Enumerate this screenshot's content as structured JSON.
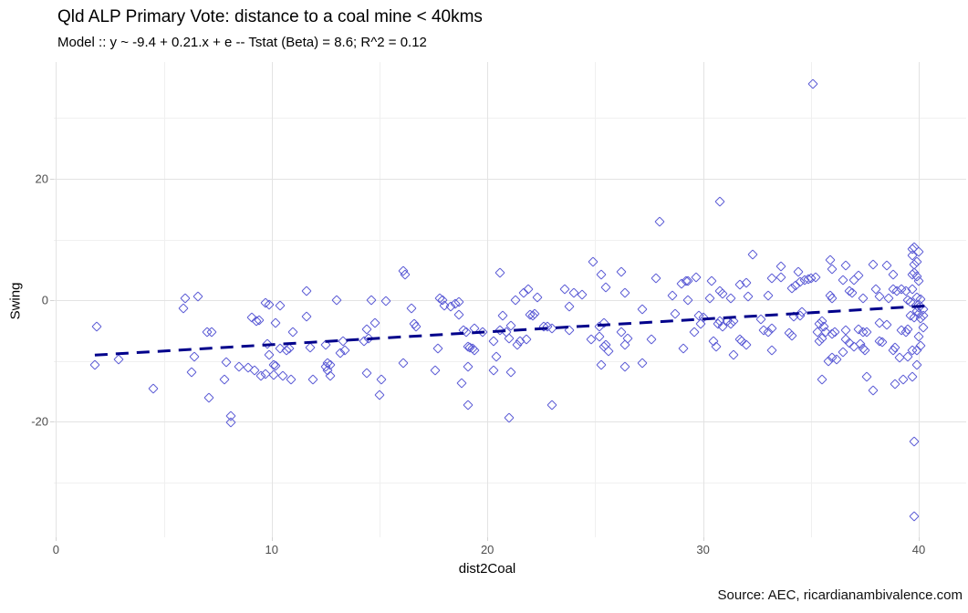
{
  "title": "Qld ALP Primary Vote: distance to a coal mine < 40kms",
  "subtitle": "Model :: y ~ -9.4 + 0.21.x + e -- Tstat (Beta) = 8.6; R^2 = 0.12",
  "source": "Source: AEC, ricardianambivalence.com",
  "chart_data": {
    "type": "scatter",
    "title": "Qld ALP Primary Vote: distance to a coal mine < 40kms",
    "subtitle": "Model :: y ~ -9.4 + 0.21.x + e -- Tstat (Beta) = 8.6; R^2 = 0.12",
    "xlabel": "dist2Coal",
    "ylabel": "Swing",
    "xlim": [
      -0.1,
      42.2
    ],
    "ylim": [
      -39,
      39.2
    ],
    "x_ticks": [
      0,
      10,
      20,
      30,
      40
    ],
    "y_ticks": [
      -20,
      0,
      20
    ],
    "x_minor_ticks": [
      5,
      15,
      25,
      35
    ],
    "y_minor_ticks": [
      -30,
      -10,
      10,
      30
    ],
    "grid": true,
    "legend": "none",
    "point_shape": "open-diamond",
    "point_color": "#5E5ED6",
    "trend_line": {
      "style": "dashed",
      "color": "#00008B",
      "intercept": -9.4,
      "slope": 0.21,
      "x_start": 1.8,
      "x_end": 40.3
    },
    "points": [
      [
        1.8,
        -10.6
      ],
      [
        1.9,
        -4.3
      ],
      [
        2.9,
        -9.7
      ],
      [
        4.5,
        -14.5
      ],
      [
        5.9,
        -1.3
      ],
      [
        6.0,
        0.3
      ],
      [
        6.6,
        0.6
      ],
      [
        6.3,
        -11.8
      ],
      [
        6.4,
        -9.3
      ],
      [
        7.0,
        -5.3
      ],
      [
        7.2,
        -5.2
      ],
      [
        7.1,
        -16.0
      ],
      [
        7.8,
        -13.0
      ],
      [
        7.9,
        -10.2
      ],
      [
        8.1,
        -19.0
      ],
      [
        8.1,
        -20.1
      ],
      [
        8.5,
        -10.9
      ],
      [
        8.9,
        -11.1
      ],
      [
        9.1,
        -2.8
      ],
      [
        9.2,
        -11.5
      ],
      [
        9.3,
        -3.4
      ],
      [
        9.4,
        -3.3
      ],
      [
        9.5,
        -12.4
      ],
      [
        9.7,
        -12.1
      ],
      [
        9.7,
        -0.5
      ],
      [
        9.8,
        -7.2
      ],
      [
        9.9,
        -0.7
      ],
      [
        9.9,
        -9.0
      ],
      [
        10.1,
        -10.6
      ],
      [
        10.1,
        -12.3
      ],
      [
        10.2,
        -10.8
      ],
      [
        10.2,
        -3.8
      ],
      [
        10.4,
        -0.9
      ],
      [
        10.4,
        -7.9
      ],
      [
        10.5,
        -12.5
      ],
      [
        10.7,
        -8.2
      ],
      [
        10.8,
        -8.0
      ],
      [
        10.9,
        -13.0
      ],
      [
        11.0,
        -5.3
      ],
      [
        11.6,
        -2.7
      ],
      [
        11.6,
        1.6
      ],
      [
        11.8,
        -7.8
      ],
      [
        11.9,
        -13.1
      ],
      [
        12.5,
        -7.4
      ],
      [
        12.5,
        -11.0
      ],
      [
        12.6,
        -10.4
      ],
      [
        12.6,
        -11.6
      ],
      [
        12.7,
        -10.6
      ],
      [
        12.7,
        -12.4
      ],
      [
        13.0,
        0.0
      ],
      [
        13.2,
        -8.7
      ],
      [
        13.3,
        -6.8
      ],
      [
        13.4,
        -8.2
      ],
      [
        14.3,
        -6.8
      ],
      [
        14.4,
        -4.8
      ],
      [
        14.4,
        -12.0
      ],
      [
        14.5,
        -6.3
      ],
      [
        14.6,
        0.0
      ],
      [
        14.8,
        -3.7
      ],
      [
        15.0,
        -15.6
      ],
      [
        15.1,
        -13.1
      ],
      [
        15.3,
        -0.2
      ],
      [
        16.1,
        4.8
      ],
      [
        16.2,
        4.2
      ],
      [
        16.1,
        -10.4
      ],
      [
        16.5,
        -1.3
      ],
      [
        16.6,
        -3.9
      ],
      [
        16.7,
        -4.3
      ],
      [
        17.6,
        -11.6
      ],
      [
        17.7,
        -8.0
      ],
      [
        17.8,
        0.3
      ],
      [
        17.9,
        0.1
      ],
      [
        18.0,
        -0.9
      ],
      [
        18.3,
        -1.0
      ],
      [
        18.5,
        -0.6
      ],
      [
        18.7,
        -2.4
      ],
      [
        18.7,
        -0.3
      ],
      [
        18.8,
        -13.6
      ],
      [
        18.9,
        -5.0
      ],
      [
        19.0,
        -5.3
      ],
      [
        19.1,
        -7.6
      ],
      [
        19.1,
        -10.9
      ],
      [
        19.1,
        -17.3
      ],
      [
        19.2,
        -7.8
      ],
      [
        19.3,
        -8.0
      ],
      [
        19.4,
        -8.3
      ],
      [
        19.4,
        -4.7
      ],
      [
        19.8,
        -5.3
      ],
      [
        20.3,
        -6.8
      ],
      [
        20.3,
        -11.5
      ],
      [
        20.4,
        -9.3
      ],
      [
        20.6,
        4.6
      ],
      [
        20.6,
        -4.9
      ],
      [
        20.7,
        -2.5
      ],
      [
        20.9,
        -5.2
      ],
      [
        21.0,
        -6.3
      ],
      [
        21.0,
        -19.4
      ],
      [
        21.1,
        -4.2
      ],
      [
        21.1,
        -11.9
      ],
      [
        21.3,
        0.1
      ],
      [
        21.4,
        -7.4
      ],
      [
        21.5,
        -6.7
      ],
      [
        21.7,
        1.3
      ],
      [
        21.8,
        -6.4
      ],
      [
        21.9,
        1.9
      ],
      [
        22.0,
        -2.4
      ],
      [
        22.1,
        -2.5
      ],
      [
        22.2,
        -2.3
      ],
      [
        22.3,
        0.5
      ],
      [
        22.6,
        -4.3
      ],
      [
        22.8,
        -4.4
      ],
      [
        23.0,
        -4.7
      ],
      [
        23.0,
        -17.3
      ],
      [
        23.6,
        1.8
      ],
      [
        23.8,
        -1.0
      ],
      [
        23.8,
        -4.9
      ],
      [
        24.0,
        1.2
      ],
      [
        24.4,
        1.0
      ],
      [
        24.8,
        -6.5
      ],
      [
        24.9,
        6.3
      ],
      [
        25.2,
        -6.0
      ],
      [
        25.2,
        -4.3
      ],
      [
        25.3,
        4.2
      ],
      [
        25.3,
        -10.6
      ],
      [
        25.4,
        -7.7
      ],
      [
        25.4,
        -3.8
      ],
      [
        25.5,
        -7.4
      ],
      [
        25.5,
        2.2
      ],
      [
        25.6,
        -8.4
      ],
      [
        26.2,
        4.7
      ],
      [
        26.2,
        -5.3
      ],
      [
        26.4,
        -10.9
      ],
      [
        26.4,
        -7.3
      ],
      [
        26.4,
        1.2
      ],
      [
        26.5,
        -6.3
      ],
      [
        27.2,
        -1.5
      ],
      [
        27.2,
        -10.4
      ],
      [
        27.6,
        -6.4
      ],
      [
        27.8,
        3.6
      ],
      [
        28.0,
        13.0
      ],
      [
        28.6,
        0.8
      ],
      [
        28.7,
        -2.2
      ],
      [
        29.0,
        2.8
      ],
      [
        29.1,
        -8.0
      ],
      [
        29.2,
        3.2
      ],
      [
        29.3,
        3.2
      ],
      [
        29.3,
        0.0
      ],
      [
        29.6,
        -5.2
      ],
      [
        29.7,
        3.8
      ],
      [
        29.8,
        -2.5
      ],
      [
        29.9,
        -3.9
      ],
      [
        30.0,
        -2.8
      ],
      [
        30.3,
        0.3
      ],
      [
        30.4,
        3.2
      ],
      [
        30.5,
        -6.8
      ],
      [
        30.6,
        -7.7
      ],
      [
        30.7,
        -3.9
      ],
      [
        30.8,
        16.2
      ],
      [
        30.8,
        1.6
      ],
      [
        30.8,
        -3.5
      ],
      [
        30.9,
        1.1
      ],
      [
        30.9,
        -4.3
      ],
      [
        31.1,
        -3.5
      ],
      [
        31.3,
        -3.9
      ],
      [
        31.3,
        0.4
      ],
      [
        31.4,
        -3.4
      ],
      [
        31.4,
        -9.0
      ],
      [
        31.7,
        2.6
      ],
      [
        31.7,
        -6.5
      ],
      [
        31.8,
        -6.8
      ],
      [
        32.0,
        2.9
      ],
      [
        32.0,
        -7.4
      ],
      [
        32.1,
        0.6
      ],
      [
        32.3,
        7.5
      ],
      [
        32.7,
        -3.2
      ],
      [
        32.8,
        -5.0
      ],
      [
        33.0,
        -5.2
      ],
      [
        33.0,
        0.8
      ],
      [
        33.2,
        -4.7
      ],
      [
        33.2,
        -8.3
      ],
      [
        33.2,
        3.6
      ],
      [
        33.6,
        5.6
      ],
      [
        33.6,
        3.8
      ],
      [
        34.0,
        -5.4
      ],
      [
        34.1,
        -5.8
      ],
      [
        34.1,
        2.0
      ],
      [
        34.2,
        -2.7
      ],
      [
        34.3,
        2.5
      ],
      [
        34.4,
        4.7
      ],
      [
        34.5,
        -2.5
      ],
      [
        34.5,
        3.0
      ],
      [
        34.6,
        -2.0
      ],
      [
        34.7,
        3.3
      ],
      [
        34.9,
        3.5
      ],
      [
        35.0,
        3.7
      ],
      [
        35.1,
        35.6
      ],
      [
        35.2,
        3.8
      ],
      [
        35.3,
        -5.2
      ],
      [
        35.4,
        -3.9
      ],
      [
        35.4,
        -6.7
      ],
      [
        35.5,
        -3.5
      ],
      [
        35.5,
        -6.3
      ],
      [
        35.5,
        -13.0
      ],
      [
        35.6,
        -4.3
      ],
      [
        35.7,
        -5.3
      ],
      [
        35.8,
        -10.1
      ],
      [
        35.9,
        6.6
      ],
      [
        35.9,
        0.8
      ],
      [
        36.0,
        5.2
      ],
      [
        36.0,
        -5.5
      ],
      [
        36.0,
        -9.5
      ],
      [
        36.0,
        0.3
      ],
      [
        36.1,
        -5.2
      ],
      [
        36.2,
        -9.8
      ],
      [
        36.5,
        3.3
      ],
      [
        36.5,
        -8.5
      ],
      [
        36.6,
        5.8
      ],
      [
        36.6,
        -5.0
      ],
      [
        36.6,
        -6.4
      ],
      [
        36.8,
        1.6
      ],
      [
        36.8,
        -7.0
      ],
      [
        36.9,
        1.3
      ],
      [
        37.0,
        3.3
      ],
      [
        37.0,
        -7.7
      ],
      [
        37.2,
        4.1
      ],
      [
        37.2,
        -4.8
      ],
      [
        37.3,
        -7.2
      ],
      [
        37.4,
        -8.0
      ],
      [
        37.4,
        -5.2
      ],
      [
        37.4,
        0.4
      ],
      [
        37.5,
        -8.3
      ],
      [
        37.6,
        -5.3
      ],
      [
        37.6,
        -12.6
      ],
      [
        37.9,
        -14.8
      ],
      [
        37.9,
        5.9
      ],
      [
        38.0,
        1.9
      ],
      [
        38.2,
        -6.7
      ],
      [
        38.2,
        -3.8
      ],
      [
        38.2,
        0.6
      ],
      [
        38.3,
        -6.9
      ],
      [
        38.5,
        -4.0
      ],
      [
        38.5,
        5.8
      ],
      [
        38.6,
        0.4
      ],
      [
        38.8,
        1.8
      ],
      [
        38.8,
        4.3
      ],
      [
        38.8,
        -8.3
      ],
      [
        38.9,
        -7.8
      ],
      [
        38.9,
        -13.8
      ],
      [
        39.0,
        1.5
      ],
      [
        39.1,
        -9.4
      ],
      [
        39.2,
        1.9
      ],
      [
        39.2,
        -5.0
      ],
      [
        39.3,
        -13.0
      ],
      [
        39.4,
        1.6
      ],
      [
        39.4,
        -5.3
      ],
      [
        39.5,
        -9.3
      ],
      [
        39.5,
        -4.8
      ],
      [
        39.5,
        0.1
      ],
      [
        39.6,
        -2.5
      ],
      [
        39.6,
        -0.3
      ],
      [
        39.7,
        8.5
      ],
      [
        39.7,
        7.4
      ],
      [
        39.7,
        4.2
      ],
      [
        39.7,
        1.9
      ],
      [
        39.7,
        -8.3
      ],
      [
        39.7,
        -12.6
      ],
      [
        39.8,
        5.9
      ],
      [
        39.8,
        4.5
      ],
      [
        39.8,
        8.8
      ],
      [
        39.8,
        -2.8
      ],
      [
        39.8,
        -23.3
      ],
      [
        39.8,
        -35.5
      ],
      [
        39.9,
        3.9
      ],
      [
        39.9,
        -8.2
      ],
      [
        39.9,
        -1.8
      ],
      [
        39.9,
        0.5
      ],
      [
        39.9,
        6.3
      ],
      [
        39.9,
        -10.6
      ],
      [
        40.0,
        3.2
      ],
      [
        40.0,
        -2.2
      ],
      [
        40.0,
        -0.8
      ],
      [
        40.0,
        -6.0
      ],
      [
        40.0,
        -1.2
      ],
      [
        40.0,
        8.0
      ],
      [
        40.1,
        0.2
      ],
      [
        40.1,
        -3.0
      ],
      [
        40.1,
        -7.5
      ],
      [
        40.2,
        -1.5
      ],
      [
        40.2,
        -4.5
      ],
      [
        40.2,
        -2.6
      ]
    ]
  }
}
